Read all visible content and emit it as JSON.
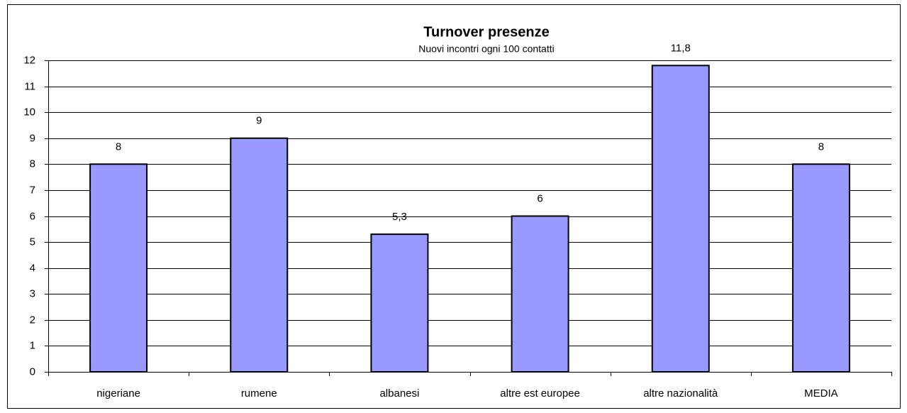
{
  "chart_data": {
    "type": "bar",
    "title": "Turnover presenze",
    "subtitle": "Nuovi incontri ogni 100 contatti",
    "categories": [
      "nigeriane",
      "rumene",
      "albanesi",
      "altre est europee",
      "altre nazionalità",
      "MEDIA"
    ],
    "values": [
      8,
      9,
      5.3,
      6,
      11.8,
      8
    ],
    "value_labels": [
      "8",
      "9",
      "5,3",
      "6",
      "11,8",
      "8"
    ],
    "color": "#9999ff",
    "ylim": [
      0,
      12
    ],
    "yticks": [
      0,
      1,
      2,
      3,
      4,
      5,
      6,
      7,
      8,
      9,
      10,
      11,
      12
    ],
    "grid": true
  }
}
